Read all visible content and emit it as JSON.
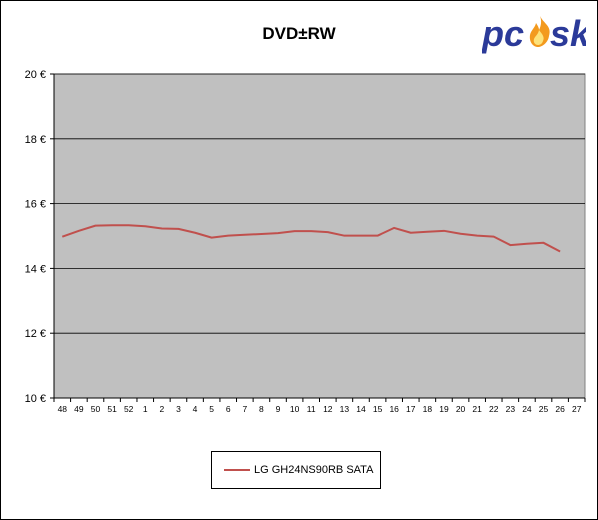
{
  "chart_data": {
    "type": "line",
    "title": "DVD±RW",
    "xlabel": "",
    "ylabel": "",
    "categories": [
      "48",
      "49",
      "50",
      "51",
      "52",
      "1",
      "2",
      "3",
      "4",
      "5",
      "6",
      "7",
      "8",
      "9",
      "10",
      "11",
      "12",
      "13",
      "14",
      "15",
      "16",
      "17",
      "18",
      "19",
      "20",
      "21",
      "22",
      "23",
      "24",
      "25",
      "26",
      "27"
    ],
    "series": [
      {
        "name": "LG GH24NS90RB SATA",
        "color": "#c0504d",
        "values": [
          14.98,
          15.16,
          15.32,
          15.33,
          15.33,
          15.3,
          15.23,
          15.22,
          15.1,
          14.95,
          15.01,
          15.04,
          15.06,
          15.09,
          15.15,
          15.15,
          15.12,
          15.01,
          15.01,
          15.01,
          15.25,
          15.1,
          15.13,
          15.16,
          15.07,
          15.01,
          14.98,
          14.72,
          14.76,
          14.79,
          14.52,
          null
        ]
      }
    ],
    "ylim": [
      10,
      20
    ],
    "yticks": [
      10,
      12,
      14,
      16,
      18,
      20
    ],
    "ytick_labels": [
      "10 €",
      "12 €",
      "14 €",
      "16 €",
      "18 €",
      "20 €"
    ],
    "plot_background": "#c0c0c0",
    "grid": true,
    "legend_position": "bottom"
  },
  "logo": {
    "text_left": "pc",
    "text_right": "sk",
    "primary_color": "#2b3a99",
    "flame_color": "#f39a1e"
  }
}
